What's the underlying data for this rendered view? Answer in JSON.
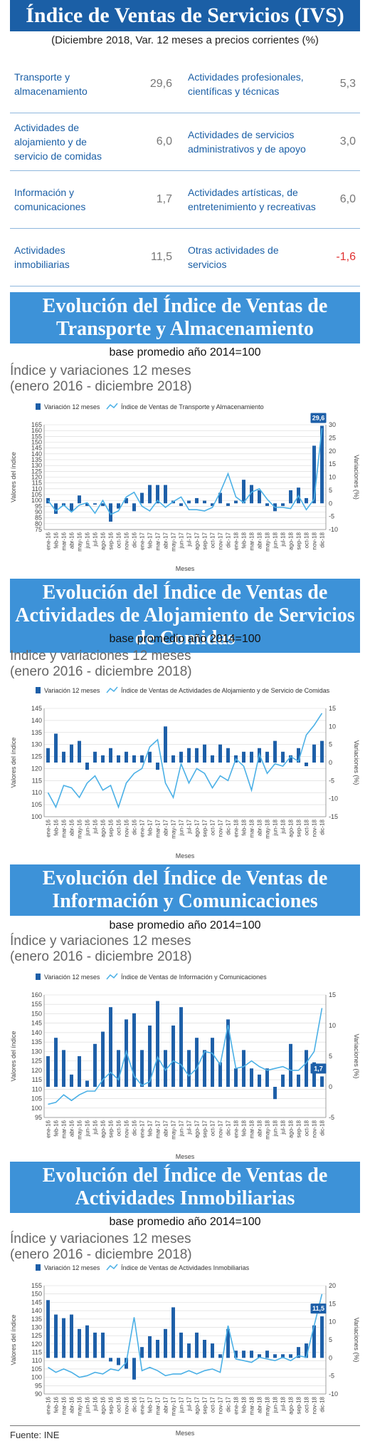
{
  "header": {
    "title": "Índice de Ventas de Servicios (IVS)",
    "subtitle": "(Diciembre 2018, Var. 12 meses a precios corrientes (%)"
  },
  "ivs_table": [
    {
      "left_label": "Transporte y almacenamiento",
      "left_value": "29,6",
      "right_label": "Actividades profesionales, científicas y técnicas",
      "right_value": "5,3"
    },
    {
      "left_label": "Actividades de alojamiento y de servicio de comidas",
      "left_value": "6,0",
      "right_label": "Actividades de servicios administrativos y de apoyo",
      "right_value": "3,0"
    },
    {
      "left_label": "Información y comunicaciones",
      "left_value": "1,7",
      "right_label": "Actividades artísticas, de entretenimiento y recreativas",
      "right_value": "6,0"
    },
    {
      "left_label": "Actividades inmobiliarias",
      "left_value": "11,5",
      "right_label": "Otras actividades de servicios",
      "right_value": "-1,6"
    }
  ],
  "colors": {
    "banner_dark": "#1b5fa6",
    "banner_light": "#3d92d8",
    "series": "#1d5fa8",
    "line": "#4bb0e6",
    "negative": "#e03030"
  },
  "sections": [
    {
      "title": "Evolución del Índice de Ventas de Transporte y Almacenamiento",
      "base": "base promedio año 2014=100",
      "caption": "Índice y variaciones 12 meses",
      "period": "(enero 2016 - diciembre 2018)"
    },
    {
      "title": "Evolución del Índice de Ventas de Actividades de Alojamiento de Servicios de Comidas",
      "base": "base promedio año 2014=100",
      "caption": "Indice y variaciones 12 meses",
      "period": "(enero 2016 - diciembre 2018)"
    },
    {
      "title": "Evolución del Índice de Ventas de Información y Comunicaciones",
      "base": "base promedio año 2014=100",
      "caption": "Índice y variaciones 12 meses",
      "period": "(enero 2016 - diciembre 2018)"
    },
    {
      "title": "Evolución del Índice de Ventas de Actividades Inmobiliarias",
      "base": "base promedio año 2014=100",
      "caption": "Índice y variaciones 12 meses",
      "period": "(enero 2016 - diciembre 2018)"
    }
  ],
  "footer": "Fuente: INE",
  "chart_data": [
    {
      "type": "bar",
      "categories": [
        "ene-16",
        "feb-16",
        "mar-16",
        "abr-16",
        "may-16",
        "jun-16",
        "jul-16",
        "ago-16",
        "sep-16",
        "oct-16",
        "nov-16",
        "dic-16",
        "ene-17",
        "feb-17",
        "mar-17",
        "abr-17",
        "may-17",
        "jun-17",
        "jul-17",
        "ago-17",
        "sep-17",
        "oct-17",
        "nov-17",
        "dic-17",
        "ene-18",
        "feb-18",
        "mar-18",
        "abr-18",
        "may-18",
        "jun-18",
        "jul-18",
        "ago-18",
        "sep-18",
        "oct-18",
        "nov-18",
        "dic-18"
      ],
      "series": [
        {
          "name": "Variación 12 meses",
          "kind": "bar",
          "axis": "right",
          "values": [
            2,
            -4,
            -1,
            -3,
            3,
            -1,
            -0.5,
            -1,
            -7,
            -2,
            2,
            -3,
            4,
            7,
            7,
            7,
            1,
            -1,
            1,
            2,
            1,
            -1,
            4,
            -1,
            1,
            9,
            7,
            5,
            -1,
            -3,
            -1,
            5,
            6,
            2,
            22,
            29.6
          ]
        },
        {
          "name": "Índice de Ventas de Transporte y Almacenamiento",
          "kind": "line",
          "axis": "left",
          "values": [
            100,
            91,
            96,
            90,
            96,
            98,
            89,
            100,
            88,
            91,
            103,
            107,
            95,
            91,
            100,
            94,
            99,
            103,
            92,
            92,
            91,
            94,
            107,
            123,
            103,
            98,
            107,
            110,
            101,
            94,
            94,
            93,
            104,
            92,
            101,
            162
          ]
        }
      ],
      "ylim_left": [
        75,
        165
      ],
      "yticks_left": [
        75,
        80,
        85,
        90,
        95,
        100,
        105,
        110,
        115,
        120,
        125,
        130,
        135,
        140,
        145,
        150,
        155,
        160,
        165
      ],
      "ylim_right": [
        -10,
        30
      ],
      "yticks_right": [
        -10,
        -5,
        0,
        5,
        10,
        15,
        20,
        25,
        30
      ],
      "ylabel": "Valores del índice",
      "y2label": "Variaciones (%)",
      "xlabel": "Meses",
      "highlight": {
        "label": "29,6"
      }
    },
    {
      "type": "bar",
      "categories": [
        "ene-16",
        "feb-16",
        "mar-16",
        "abr-16",
        "may-16",
        "jun-16",
        "jul-16",
        "ago-16",
        "sep-16",
        "oct-16",
        "nov-16",
        "dic-16",
        "ene-17",
        "feb-17",
        "mar-17",
        "abr-17",
        "may-17",
        "jun-17",
        "jul-17",
        "ago-17",
        "sep-17",
        "oct-17",
        "nov-17",
        "dic-17",
        "ene-18",
        "feb-18",
        "mar-18",
        "abr-18",
        "may-18",
        "jun-18",
        "jul-18",
        "ago-18",
        "sep-18",
        "oct-18",
        "nov-18",
        "dic-18"
      ],
      "series": [
        {
          "name": "Variación 12 meses",
          "kind": "bar",
          "axis": "right",
          "values": [
            4,
            8,
            3,
            5,
            6,
            -2,
            3,
            2,
            4,
            2,
            3,
            2,
            2,
            3,
            -2,
            10,
            2,
            3,
            4,
            4,
            5,
            2,
            5,
            4,
            2,
            3,
            3,
            4,
            3,
            6,
            3,
            2,
            4,
            -1,
            5,
            6
          ]
        },
        {
          "name": "Índice de Ventas de Actividades de Alojamiento y de Servicio de Comidas",
          "kind": "line",
          "axis": "left",
          "values": [
            110,
            104,
            113,
            112,
            108,
            114,
            117,
            111,
            113,
            104,
            114,
            118,
            120,
            129,
            132,
            114,
            108,
            122,
            114,
            120,
            118,
            112,
            117,
            115,
            124,
            121,
            111,
            126,
            118,
            122,
            121,
            125,
            123,
            134,
            138,
            143
          ]
        }
      ],
      "ylim_left": [
        100,
        145
      ],
      "yticks_left": [
        100,
        105,
        110,
        115,
        120,
        125,
        130,
        135,
        140,
        145
      ],
      "ylim_right": [
        -15,
        15
      ],
      "yticks_right": [
        -15,
        -10,
        -5,
        0,
        5,
        10,
        15
      ],
      "ylabel": "Valores del índice",
      "y2label": "Variaciones (%)",
      "xlabel": "Meses"
    },
    {
      "type": "bar",
      "categories": [
        "ene-16",
        "feb-16",
        "mar-16",
        "abr-16",
        "may-16",
        "jun-16",
        "jul-16",
        "ago-16",
        "sep-16",
        "oct-16",
        "nov-16",
        "dic-16",
        "ene-17",
        "feb-17",
        "mar-17",
        "abr-17",
        "may-17",
        "jun-17",
        "jul-17",
        "ago-17",
        "sep-17",
        "oct-17",
        "nov-17",
        "dic-17",
        "ene-18",
        "feb-18",
        "mar-18",
        "abr-18",
        "may-18",
        "jun-18",
        "jul-18",
        "ago-18",
        "sep-18",
        "oct-18",
        "nov-18",
        "dic-18"
      ],
      "series": [
        {
          "name": "Variación 12 meses",
          "kind": "bar",
          "axis": "right",
          "values": [
            5,
            8,
            6,
            2,
            5,
            1,
            7,
            9,
            13,
            6,
            11,
            12,
            6,
            10,
            14,
            6,
            10,
            13,
            6,
            8,
            6,
            8,
            4,
            11,
            3,
            6,
            3,
            2,
            3,
            -2,
            2,
            7,
            2,
            6,
            4,
            1.7
          ]
        },
        {
          "name": "Índice de Ventas de Información y Comunicaciones",
          "kind": "line",
          "axis": "left",
          "values": [
            102,
            103,
            107,
            104,
            107,
            109,
            109,
            115,
            119,
            115,
            130,
            117,
            112,
            114,
            127,
            120,
            125,
            123,
            117,
            121,
            130,
            129,
            123,
            144,
            121,
            122,
            125,
            122,
            120,
            121,
            122,
            120,
            120,
            124,
            130,
            153
          ]
        }
      ],
      "ylim_left": [
        95,
        160
      ],
      "yticks_left": [
        95,
        100,
        105,
        110,
        115,
        120,
        125,
        130,
        135,
        140,
        145,
        150,
        155,
        160
      ],
      "ylim_right": [
        -5,
        15
      ],
      "yticks_right": [
        -5,
        0,
        5,
        10,
        15
      ],
      "ylabel": "Valores del índice",
      "y2label": "Variaciones (%)",
      "xlabel": "Meses",
      "highlight": {
        "label": "1,7"
      }
    },
    {
      "type": "bar",
      "categories": [
        "ene-16",
        "feb-16",
        "mar-16",
        "abr-16",
        "may-16",
        "jun-16",
        "jul-16",
        "ago-16",
        "sep-16",
        "oct-16",
        "nov-16",
        "dic-16",
        "ene-17",
        "feb-17",
        "mar-17",
        "abr-17",
        "may-17",
        "jun-17",
        "jul-17",
        "ago-17",
        "sep-17",
        "oct-17",
        "nov-17",
        "dic-17",
        "ene-18",
        "feb-18",
        "mar-18",
        "abr-18",
        "may-18",
        "jun-18",
        "jul-18",
        "ago-18",
        "sep-18",
        "oct-18",
        "nov-18",
        "dic-18"
      ],
      "series": [
        {
          "name": "Variación 12 meses",
          "kind": "bar",
          "axis": "right",
          "values": [
            16,
            12,
            11,
            12,
            8,
            9,
            7,
            7,
            -1,
            -2,
            -3,
            -6,
            3,
            6,
            5,
            8,
            14,
            7,
            4,
            7,
            5,
            4,
            1,
            8,
            2,
            2,
            2,
            1,
            2,
            1,
            1,
            1,
            3,
            4,
            9,
            11.5
          ]
        },
        {
          "name": "Índice de Ventas de Actividades Inmobiliarias",
          "kind": "line",
          "axis": "left",
          "values": [
            106,
            103,
            105,
            103,
            100,
            101,
            103,
            102,
            105,
            104,
            109,
            136,
            104,
            106,
            104,
            101,
            102,
            102,
            104,
            102,
            104,
            105,
            103,
            131,
            111,
            110,
            109,
            112,
            111,
            110,
            112,
            110,
            113,
            112,
            131,
            150
          ]
        }
      ],
      "ylim_left": [
        90,
        155
      ],
      "yticks_left": [
        90,
        95,
        100,
        105,
        110,
        115,
        120,
        125,
        130,
        135,
        140,
        145,
        150,
        155
      ],
      "ylim_right": [
        -10,
        20
      ],
      "yticks_right": [
        -10,
        -5,
        0,
        5,
        10,
        15,
        20
      ],
      "ylabel": "Valores del índice",
      "y2label": "Variaciones (%)",
      "xlabel": "Meses",
      "highlight": {
        "label": "11,5"
      }
    }
  ]
}
